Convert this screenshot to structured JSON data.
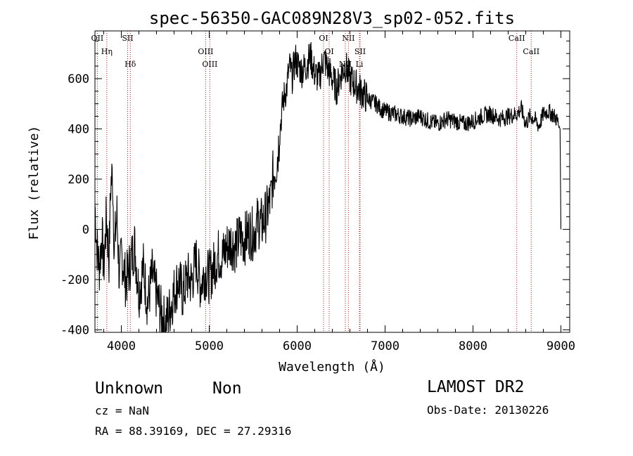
{
  "chart_data": {
    "type": "line",
    "title": "spec-56350-GAC089N28V3_sp02-052.fits",
    "xlabel": "Wavelength (Å)",
    "ylabel": "Flux (relative)",
    "xlim": [
      3700,
      9100
    ],
    "ylim": [
      -410,
      790
    ],
    "xticks": [
      4000,
      5000,
      6000,
      7000,
      8000,
      9000
    ],
    "yticks": [
      -400,
      -200,
      0,
      200,
      400,
      600
    ],
    "grid": false,
    "line_color": "#000000",
    "marker_color": "#aa2222",
    "series": [
      {
        "x": [
          3700,
          3720,
          3750,
          3780,
          3800,
          3830,
          3860,
          3880,
          3900,
          3920,
          3950,
          3980,
          4000,
          4050,
          4100,
          4150,
          4200,
          4250,
          4300,
          4350,
          4400,
          4450,
          4500,
          4550,
          4600,
          4650,
          4700,
          4750,
          4800,
          4850,
          4900,
          4950,
          5000,
          5050,
          5100,
          5150,
          5200,
          5250,
          5300,
          5350,
          5400,
          5450,
          5500,
          5550,
          5600,
          5650,
          5700,
          5720,
          5740,
          5760,
          5780,
          5800,
          5820,
          5840,
          5860,
          5880,
          5900,
          5920,
          5940,
          5960,
          5980,
          6000,
          6050,
          6100,
          6150,
          6200,
          6250,
          6300,
          6350,
          6400,
          6450,
          6500,
          6550,
          6600,
          6650,
          6700,
          6750,
          6800,
          6850,
          6900,
          6950,
          7000,
          7100,
          7200,
          7300,
          7400,
          7500,
          7600,
          7700,
          7800,
          7900,
          8000,
          8100,
          8200,
          8300,
          8400,
          8500,
          8550,
          8600,
          8650,
          8700,
          8750,
          8800,
          8850,
          8900,
          8950,
          8990,
          9000
        ],
        "y": [
          100,
          -60,
          -150,
          -20,
          -160,
          50,
          -120,
          180,
          220,
          -80,
          60,
          -220,
          -90,
          -210,
          -140,
          -60,
          -250,
          -150,
          -300,
          -180,
          -260,
          -330,
          -380,
          -320,
          -250,
          -200,
          -260,
          -190,
          -210,
          -120,
          -220,
          -170,
          -190,
          -150,
          -100,
          -110,
          -70,
          -50,
          -70,
          -30,
          -40,
          -10,
          -20,
          30,
          20,
          60,
          120,
          200,
          230,
          260,
          300,
          380,
          450,
          510,
          540,
          560,
          620,
          650,
          600,
          640,
          680,
          660,
          630,
          650,
          690,
          620,
          600,
          680,
          640,
          600,
          560,
          620,
          650,
          600,
          580,
          560,
          540,
          520,
          510,
          500,
          480,
          470,
          460,
          450,
          440,
          450,
          430,
          420,
          440,
          430,
          420,
          430,
          450,
          460,
          440,
          450,
          460,
          480,
          420,
          450,
          440,
          410,
          460,
          470,
          460,
          440,
          400,
          0
        ]
      }
    ],
    "line_markers": [
      {
        "label": "OII",
        "x": 3727
      },
      {
        "label": "Hη",
        "x": 3835
      },
      {
        "label": "Hδ",
        "x": 4102
      },
      {
        "label": "SII",
        "x": 4072
      },
      {
        "label": "OIII",
        "x": 4959
      },
      {
        "label": "OIII",
        "x": 5007
      },
      {
        "label": "OI",
        "x": 6300
      },
      {
        "label": "OI",
        "x": 6364
      },
      {
        "label": "NII",
        "x": 6548
      },
      {
        "label": "NII",
        "x": 6583
      },
      {
        "label": "SII",
        "x": 6716
      },
      {
        "label": "Li",
        "x": 6708
      },
      {
        "label": "CaII",
        "x": 8498
      },
      {
        "label": "CaII",
        "x": 8662
      }
    ]
  },
  "info": {
    "class": "Unknown",
    "subclass": "Non",
    "cz": "cz = NaN",
    "coords": "RA =  88.39169, DEC =  27.29316",
    "survey": "LAMOST DR2",
    "obs_date": "Obs-Date: 20130226"
  }
}
